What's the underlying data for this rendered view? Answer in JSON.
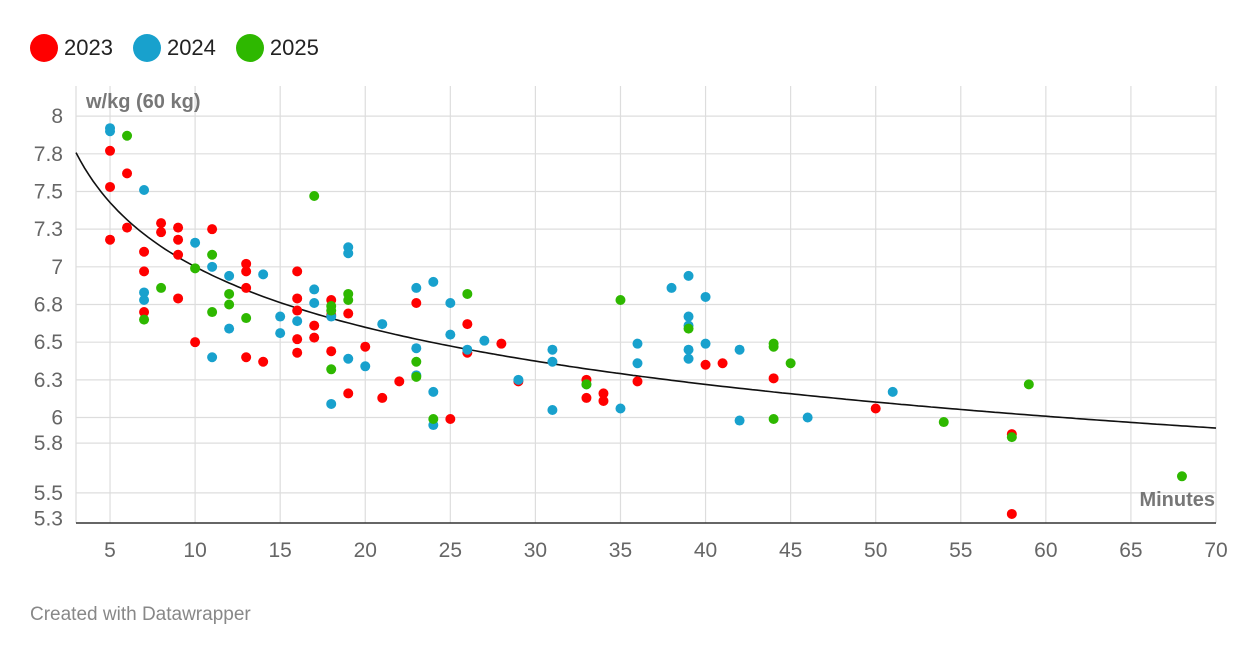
{
  "legend": [
    {
      "label": "2023",
      "color": "#ff0000"
    },
    {
      "label": "2024",
      "color": "#18a1cd"
    },
    {
      "label": "2025",
      "color": "#2eb800"
    }
  ],
  "footer": {
    "text": "Created with Datawrapper"
  },
  "chart_data": {
    "type": "scatter",
    "title": "",
    "xlabel": "Minutes",
    "ylabel": "w/kg (60 kg)",
    "xlim": [
      3,
      70
    ],
    "ylim": [
      5.3,
      8.2
    ],
    "x_ticks": [
      5,
      10,
      15,
      20,
      25,
      30,
      35,
      40,
      45,
      50,
      55,
      60,
      65,
      70
    ],
    "y_ticks": [
      {
        "value": 5.33,
        "label": "5.3"
      },
      {
        "value": 5.5,
        "label": "5.5"
      },
      {
        "value": 5.83,
        "label": "5.8"
      },
      {
        "value": 6.0,
        "label": "6"
      },
      {
        "value": 6.25,
        "label": "6.3"
      },
      {
        "value": 6.5,
        "label": "6.5"
      },
      {
        "value": 6.75,
        "label": "6.8"
      },
      {
        "value": 7.0,
        "label": "7"
      },
      {
        "value": 7.25,
        "label": "7.3"
      },
      {
        "value": 7.5,
        "label": "7.5"
      },
      {
        "value": 7.75,
        "label": "7.8"
      },
      {
        "value": 8.0,
        "label": "8"
      }
    ],
    "grid": true,
    "legend_position": "top-left",
    "trendline": {
      "type": "power",
      "a": 8.52,
      "b": -0.0853
    },
    "series": [
      {
        "name": "2023",
        "color": "#ff0000",
        "points": [
          [
            5,
            7.77
          ],
          [
            5,
            7.53
          ],
          [
            5,
            7.18
          ],
          [
            6,
            7.62
          ],
          [
            6,
            7.26
          ],
          [
            7,
            7.1
          ],
          [
            7,
            6.97
          ],
          [
            7,
            6.7
          ],
          [
            8,
            7.29
          ],
          [
            8,
            7.23
          ],
          [
            9,
            7.26
          ],
          [
            9,
            7.18
          ],
          [
            9,
            7.08
          ],
          [
            9,
            6.79
          ],
          [
            10,
            6.5
          ],
          [
            11,
            7.25
          ],
          [
            13,
            7.02
          ],
          [
            13,
            6.97
          ],
          [
            13,
            6.86
          ],
          [
            13,
            6.4
          ],
          [
            14,
            6.37
          ],
          [
            16,
            6.97
          ],
          [
            16,
            6.79
          ],
          [
            16,
            6.71
          ],
          [
            16,
            6.52
          ],
          [
            16,
            6.43
          ],
          [
            17,
            6.61
          ],
          [
            17,
            6.53
          ],
          [
            18,
            6.78
          ],
          [
            18,
            6.68
          ],
          [
            18,
            6.44
          ],
          [
            19,
            6.69
          ],
          [
            19,
            6.16
          ],
          [
            20,
            6.47
          ],
          [
            21,
            6.13
          ],
          [
            22,
            6.24
          ],
          [
            23,
            6.76
          ],
          [
            25,
            5.99
          ],
          [
            26,
            6.62
          ],
          [
            26,
            6.43
          ],
          [
            28,
            6.49
          ],
          [
            29,
            6.24
          ],
          [
            33,
            6.25
          ],
          [
            33,
            6.13
          ],
          [
            34,
            6.16
          ],
          [
            34,
            6.11
          ],
          [
            36,
            6.24
          ],
          [
            40,
            6.35
          ],
          [
            41,
            6.36
          ],
          [
            44,
            6.26
          ],
          [
            50,
            6.06
          ],
          [
            58,
            5.89
          ],
          [
            58,
            5.36
          ]
        ]
      },
      {
        "name": "2024",
        "color": "#18a1cd",
        "points": [
          [
            5,
            7.92
          ],
          [
            5,
            7.9
          ],
          [
            7,
            7.51
          ],
          [
            7,
            6.83
          ],
          [
            7,
            6.78
          ],
          [
            10,
            7.16
          ],
          [
            11,
            7.0
          ],
          [
            11,
            6.4
          ],
          [
            12,
            6.94
          ],
          [
            12,
            6.59
          ],
          [
            14,
            6.95
          ],
          [
            15,
            6.67
          ],
          [
            15,
            6.56
          ],
          [
            16,
            6.64
          ],
          [
            17,
            6.85
          ],
          [
            17,
            6.76
          ],
          [
            18,
            6.67
          ],
          [
            18,
            6.09
          ],
          [
            19,
            7.13
          ],
          [
            19,
            7.09
          ],
          [
            19,
            6.39
          ],
          [
            20,
            6.34
          ],
          [
            21,
            6.62
          ],
          [
            23,
            6.86
          ],
          [
            23,
            6.46
          ],
          [
            23,
            6.28
          ],
          [
            24,
            6.9
          ],
          [
            24,
            6.17
          ],
          [
            24,
            5.95
          ],
          [
            25,
            6.76
          ],
          [
            25,
            6.55
          ],
          [
            26,
            6.45
          ],
          [
            27,
            6.51
          ],
          [
            29,
            6.25
          ],
          [
            31,
            6.45
          ],
          [
            31,
            6.37
          ],
          [
            31,
            6.05
          ],
          [
            33,
            6.22
          ],
          [
            35,
            6.06
          ],
          [
            36,
            6.49
          ],
          [
            36,
            6.36
          ],
          [
            38,
            6.86
          ],
          [
            39,
            6.94
          ],
          [
            39,
            6.67
          ],
          [
            39,
            6.61
          ],
          [
            39,
            6.45
          ],
          [
            39,
            6.39
          ],
          [
            40,
            6.8
          ],
          [
            40,
            6.49
          ],
          [
            42,
            6.45
          ],
          [
            42,
            5.98
          ],
          [
            46,
            6.0
          ],
          [
            51,
            6.17
          ]
        ]
      },
      {
        "name": "2025",
        "color": "#2eb800",
        "points": [
          [
            6,
            7.87
          ],
          [
            7,
            6.65
          ],
          [
            8,
            6.86
          ],
          [
            10,
            6.99
          ],
          [
            11,
            7.08
          ],
          [
            11,
            6.7
          ],
          [
            12,
            6.82
          ],
          [
            12,
            6.75
          ],
          [
            13,
            6.66
          ],
          [
            17,
            7.47
          ],
          [
            18,
            6.74
          ],
          [
            18,
            6.71
          ],
          [
            18,
            6.32
          ],
          [
            19,
            6.82
          ],
          [
            19,
            6.78
          ],
          [
            23,
            6.37
          ],
          [
            23,
            6.27
          ],
          [
            24,
            5.99
          ],
          [
            26,
            6.82
          ],
          [
            33,
            6.22
          ],
          [
            35,
            6.78
          ],
          [
            39,
            6.59
          ],
          [
            44,
            6.49
          ],
          [
            44,
            6.47
          ],
          [
            44,
            5.99
          ],
          [
            45,
            6.36
          ],
          [
            54,
            5.97
          ],
          [
            58,
            5.87
          ],
          [
            59,
            6.22
          ],
          [
            68,
            5.61
          ]
        ]
      }
    ]
  }
}
